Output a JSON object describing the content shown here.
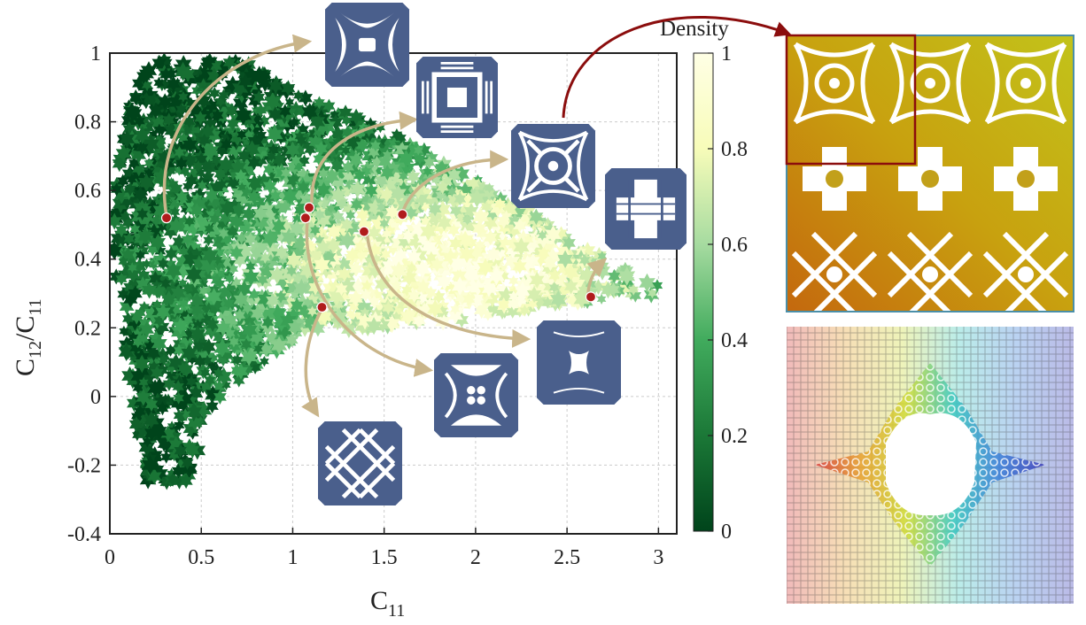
{
  "chart_data": {
    "type": "scatter",
    "xlabel": "C",
    "xlabel_sub": "11",
    "ylabel": "C",
    "ylabel_sub_1": "12",
    "ylabel_sep": "/C",
    "ylabel_sub_2": "11",
    "xlim": [
      0,
      3.1
    ],
    "ylim": [
      -0.4,
      1
    ],
    "xticks": [
      0,
      0.5,
      1,
      1.5,
      2,
      2.5,
      3
    ],
    "xtick_labels": [
      "0",
      "0.5",
      "1",
      "1.5",
      "2",
      "2.5",
      "3"
    ],
    "yticks": [
      -0.4,
      -0.2,
      0,
      0.2,
      0.4,
      0.6,
      0.8,
      1
    ],
    "ytick_labels": [
      "-0.4",
      "-0.2",
      "0",
      "0.2",
      "0.4",
      "0.6",
      "0.8",
      "1"
    ],
    "grid": true,
    "marker": "star",
    "colorbar": {
      "title": "Density",
      "range": [
        0,
        1
      ],
      "ticks": [
        0,
        0.2,
        0.4,
        0.6,
        0.8,
        1
      ],
      "tick_labels": [
        "0",
        "0.2",
        "0.4",
        "0.6",
        "0.8",
        "1"
      ],
      "colors": [
        "#00441b",
        "#1b7837",
        "#41ab5d",
        "#a6dba0",
        "#f7fcb9",
        "#ffffe5"
      ]
    },
    "envelope": [
      [
        0.22,
        0.98
      ],
      [
        0.72,
        0.98
      ],
      [
        1.05,
        0.88
      ],
      [
        1.55,
        0.77
      ],
      [
        2.05,
        0.62
      ],
      [
        2.55,
        0.45
      ],
      [
        3.08,
        0.3
      ],
      [
        2.55,
        0.27
      ],
      [
        2.05,
        0.23
      ],
      [
        1.55,
        0.2
      ],
      [
        1.05,
        0.18
      ],
      [
        0.72,
        0.05
      ],
      [
        0.52,
        -0.05
      ],
      [
        0.45,
        -0.25
      ],
      [
        0.18,
        -0.25
      ],
      [
        0.1,
        0.05
      ],
      [
        0.02,
        0.4
      ],
      [
        0.02,
        0.6
      ],
      [
        0.1,
        0.85
      ]
    ],
    "highlighted_points": [
      {
        "x": 0.31,
        "y": 0.52
      },
      {
        "x": 1.09,
        "y": 0.55
      },
      {
        "x": 1.07,
        "y": 0.52
      },
      {
        "x": 1.39,
        "y": 0.48
      },
      {
        "x": 1.6,
        "y": 0.53
      },
      {
        "x": 1.16,
        "y": 0.26
      },
      {
        "x": 2.63,
        "y": 0.29
      }
    ],
    "highlight_color": "#b01c1c",
    "arrow_color": "#c9b58a",
    "tile_color": "#4a5f8c",
    "callout_color": "#8b0d0d"
  }
}
